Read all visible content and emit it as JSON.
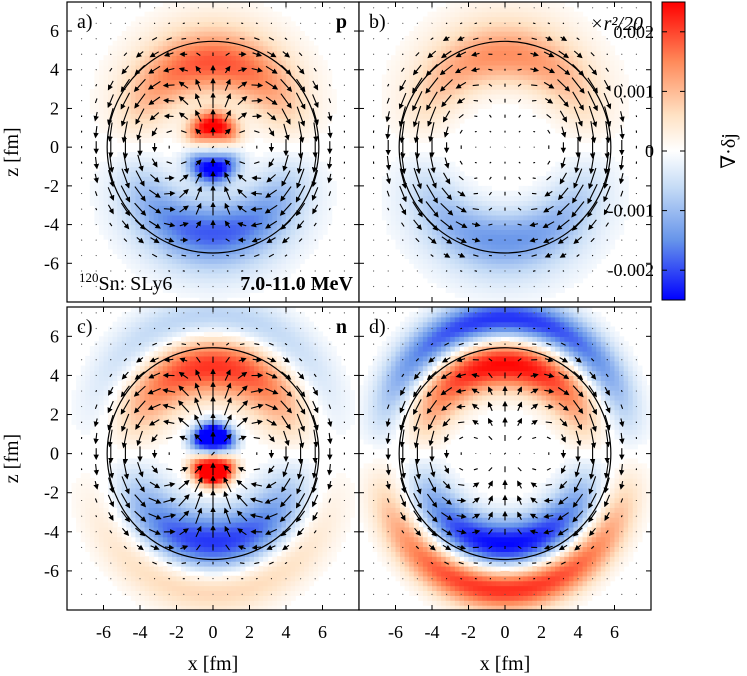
{
  "chart_data": {
    "type": "heatmap",
    "description_units": {
      "x": "fm",
      "z": "fm"
    },
    "xlabel": "x [fm]",
    "ylabel": "z [fm]",
    "xlim": [
      -8,
      8
    ],
    "ylim": [
      -8,
      7.5
    ],
    "x_ticks": [
      "-6",
      "-4",
      "-2",
      "0",
      "2",
      "4",
      "6"
    ],
    "y_ticks": [
      "6",
      "4",
      "2",
      "0",
      "-2",
      "-4",
      "-6"
    ],
    "nuclear_radius": 5.8,
    "colorbar": {
      "label": "∇·δj",
      "range": [
        -0.0025,
        0.0025
      ],
      "ticks": [
        "0.002",
        "0.001",
        "0",
        "-0.001",
        "-0.002"
      ],
      "colors": [
        "#0000ff",
        "#ffffff",
        "#ff0000"
      ]
    },
    "panels": [
      {
        "id": "a",
        "tag": "a)",
        "corner_label": "p",
        "extra_label": "",
        "nucleus_label": "120Sn: SLy6",
        "mass_number": "120",
        "nucleus_text": "Sn: SLy6",
        "energy_label": "7.0-11.0 MeV",
        "pattern": "proton",
        "amplitude": 0.002
      },
      {
        "id": "b",
        "tag": "b)",
        "corner_label": "",
        "extra_label": "×r²/20",
        "pattern": "proton_weighted",
        "amplitude": 0.0016
      },
      {
        "id": "c",
        "tag": "c)",
        "corner_label": "n",
        "extra_label": "",
        "pattern": "neutron",
        "amplitude": 0.0024
      },
      {
        "id": "d",
        "tag": "d)",
        "corner_label": "",
        "extra_label": "",
        "pattern": "neutron_weighted",
        "amplitude": 0.0025
      }
    ]
  }
}
